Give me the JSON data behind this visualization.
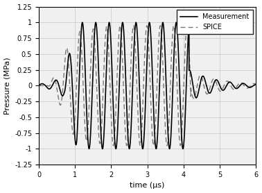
{
  "xlabel": "time (μs)",
  "ylabel": "Pressure (MPa)",
  "xlim": [
    0,
    6
  ],
  "ylim": [
    -1.25,
    1.25
  ],
  "yticks": [
    -1.25,
    -1.0,
    -0.75,
    -0.5,
    -0.25,
    0,
    0.25,
    0.5,
    0.75,
    1.0,
    1.25
  ],
  "xticks": [
    0,
    1,
    2,
    3,
    4,
    5,
    6
  ],
  "freq_MHz": 2.7,
  "bg_axes": "#f0f0f0",
  "bg_fig": "#ffffff",
  "grid_color": "#c8c8c8",
  "meas_color": "#000000",
  "spice_color": "#777777",
  "legend_labels": [
    "Measurement",
    "SPICE"
  ],
  "meas_lw": 1.2,
  "spice_lw": 1.0,
  "figsize": [
    3.78,
    2.78
  ],
  "dpi": 100
}
